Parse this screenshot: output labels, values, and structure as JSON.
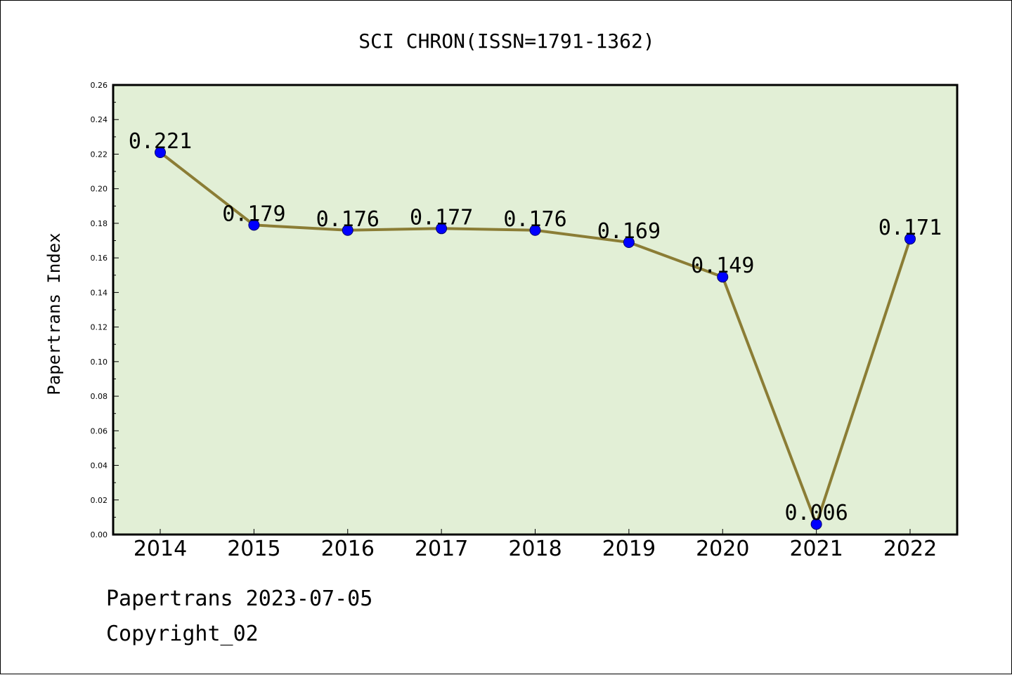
{
  "chart_data": {
    "type": "line",
    "title": "SCI CHRON(ISSN=1791-1362)",
    "xlabel": "",
    "ylabel": "Papertrans Index",
    "categories": [
      "2014",
      "2015",
      "2016",
      "2017",
      "2018",
      "2019",
      "2020",
      "2021",
      "2022"
    ],
    "values": [
      0.221,
      0.179,
      0.176,
      0.177,
      0.176,
      0.169,
      0.149,
      0.006,
      0.171
    ],
    "data_labels": [
      "0.221",
      "0.179",
      "0.176",
      "0.177",
      "0.176",
      "0.169",
      "0.149",
      "0.006",
      "0.171"
    ],
    "ylim": [
      0,
      0.26
    ],
    "yticks": [
      "0.00",
      "0.02",
      "0.04",
      "0.06",
      "0.08",
      "0.10",
      "0.12",
      "0.14",
      "0.16",
      "0.18",
      "0.20",
      "0.22",
      "0.24",
      "0.26"
    ],
    "grid": false,
    "plot_background": "#e2efd6",
    "line_color": "#8b7d35",
    "marker_color": "#0000ff"
  },
  "footer": {
    "source": "Papertrans 2023-07-05",
    "copyright": "Copyright_02"
  }
}
